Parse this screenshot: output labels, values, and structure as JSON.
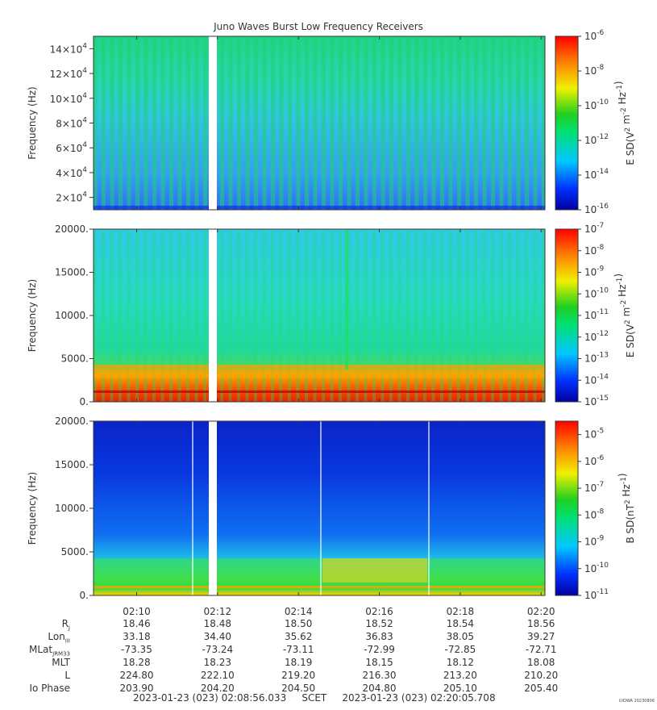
{
  "title": "Juno Waves Burst Low Frequency Receivers",
  "chart_data": [
    {
      "type": "heatmap",
      "panel": "E-field high band",
      "ylabel": "Frequency (Hz)",
      "ylim": [
        10000,
        150000
      ],
      "y_ticks": [
        {
          "value": 20000,
          "mant": "2",
          "exp": "4"
        },
        {
          "value": 40000,
          "mant": "4",
          "exp": "4"
        },
        {
          "value": 60000,
          "mant": "6",
          "exp": "4"
        },
        {
          "value": 80000,
          "mant": "8",
          "exp": "4"
        },
        {
          "value": 100000,
          "mant": "10",
          "exp": "4"
        },
        {
          "value": 120000,
          "mant": "12",
          "exp": "4"
        },
        {
          "value": 140000,
          "mant": "14",
          "exp": "4"
        }
      ],
      "colorbar": {
        "label": "E SD(V2 m-2 Hz-1)",
        "log_range": [
          -16,
          -6
        ],
        "ticks": [
          "-16",
          "-14",
          "-12",
          "-10",
          "-8",
          "-6"
        ]
      },
      "description_levels": {
        "background": -13.5,
        "bands": [
          -12,
          -11
        ]
      }
    },
    {
      "type": "heatmap",
      "panel": "E-field low band",
      "ylabel": "Frequency (Hz)",
      "ylim": [
        0,
        20000
      ],
      "y_ticks": [
        "0.",
        "5000.",
        "10000.",
        "15000.",
        "20000."
      ],
      "colorbar": {
        "label": "E SD(V2 m-2 Hz-1)",
        "log_range": [
          -15,
          -7
        ],
        "ticks": [
          "-15",
          "-14",
          "-13",
          "-12",
          "-11",
          "-10",
          "-9",
          "-8",
          "-7"
        ]
      }
    },
    {
      "type": "heatmap",
      "panel": "B-field",
      "ylabel": "Frequency (Hz)",
      "ylim": [
        0,
        20000
      ],
      "y_ticks": [
        "0.",
        "5000.",
        "10000.",
        "15000.",
        "20000."
      ],
      "colorbar": {
        "label": "B SD(nT2 Hz-1)",
        "log_range": [
          -11,
          -4.5
        ],
        "ticks": [
          "-11",
          "-10",
          "-9",
          "-8",
          "-7",
          "-6",
          "-5"
        ]
      }
    }
  ],
  "x_axis": {
    "ticks": [
      "02:10",
      "02:12",
      "02:14",
      "02:16",
      "02:18",
      "02:20"
    ]
  },
  "ephemeris": [
    {
      "label": "R",
      "sub": "J",
      "values": [
        "18.46",
        "18.48",
        "18.50",
        "18.52",
        "18.54",
        "18.56"
      ]
    },
    {
      "label": "Lon",
      "sub": "III",
      "values": [
        "33.18",
        "34.40",
        "35.62",
        "36.83",
        "38.05",
        "39.27"
      ]
    },
    {
      "label": "MLat",
      "sub": "JRM33",
      "values": [
        "-73.35",
        "-73.24",
        "-73.11",
        "-72.99",
        "-72.85",
        "-72.71"
      ]
    },
    {
      "label": "MLT",
      "sub": "",
      "values": [
        "18.28",
        "18.23",
        "18.19",
        "18.15",
        "18.12",
        "18.08"
      ]
    },
    {
      "label": "L",
      "sub": "",
      "values": [
        "224.80",
        "222.10",
        "219.20",
        "216.30",
        "213.20",
        "210.20"
      ]
    },
    {
      "label": "Io Phase",
      "sub": "",
      "values": [
        "203.90",
        "204.20",
        "204.50",
        "204.80",
        "205.10",
        "205.40"
      ]
    }
  ],
  "footer": {
    "start": "2023-01-23 (023) 02:08:56.033",
    "mid": "SCET",
    "end": "2023-01-23 (023) 02:20:05.708"
  },
  "stamp": "UIOWA 20230806"
}
